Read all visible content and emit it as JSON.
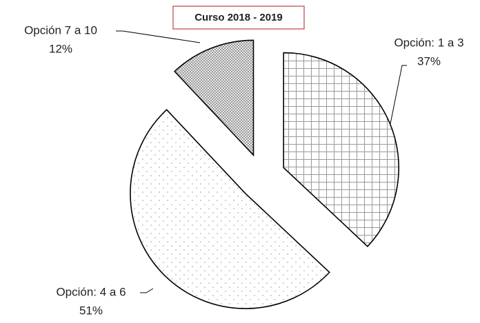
{
  "chart_data": {
    "type": "pie",
    "title": "Curso 2018 - 2019",
    "categories": [
      "Opción: 1 a 3",
      "Opción: 4 a 6",
      "Opción 7 a 10"
    ],
    "values": [
      37,
      51,
      12
    ],
    "value_labels": [
      "37%",
      "51%",
      "12%"
    ]
  }
}
